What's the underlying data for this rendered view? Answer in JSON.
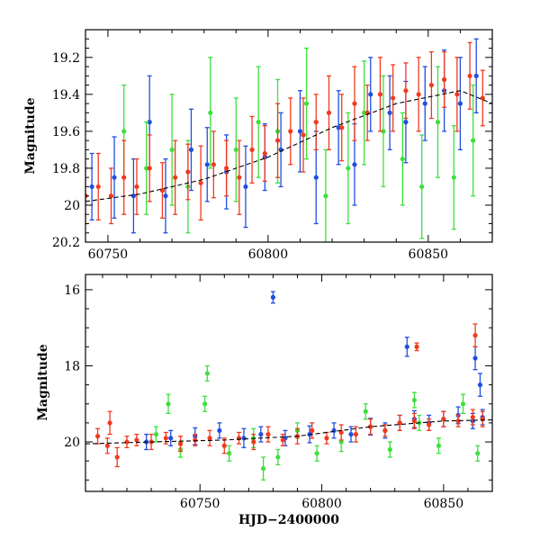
{
  "colors": {
    "blue": "#1f4fe0",
    "green": "#3de03d",
    "red": "#f03a1e",
    "model": "#000000"
  },
  "chart_data": [
    {
      "type": "scatter",
      "title": "",
      "xlabel": "",
      "ylabel": "Magnitude",
      "xlim": [
        60743,
        60870
      ],
      "ylim": [
        20.2,
        19.05
      ],
      "y_inverted": true,
      "x_ticks": [
        60750,
        60800,
        60850
      ],
      "x_tick_labels": [
        "60750",
        "60800",
        "60850"
      ],
      "y_ticks": [
        19.2,
        19.4,
        19.6,
        19.8,
        20,
        20.2
      ],
      "y_tick_labels": [
        "19.2",
        "19.4",
        "19.6",
        "19.8",
        "20",
        "20.2"
      ],
      "grid": false,
      "model_curve": {
        "style": "dashed",
        "x": [
          60743,
          60760,
          60780,
          60800,
          60820,
          60840,
          60860,
          60870
        ],
        "y": [
          19.98,
          19.94,
          19.86,
          19.74,
          19.58,
          19.45,
          19.38,
          19.45
        ]
      },
      "series": [
        {
          "color": "blue",
          "x": [
            60745,
            60752,
            60758,
            60763,
            60768,
            60776,
            60781,
            60787,
            60793,
            60799,
            60804,
            60810,
            60815,
            60822,
            60827,
            60832,
            60838,
            60843,
            60849,
            60855,
            60860,
            60865
          ],
          "y": [
            19.9,
            19.85,
            19.95,
            19.55,
            19.95,
            19.7,
            19.78,
            19.82,
            19.9,
            19.74,
            19.7,
            19.6,
            19.85,
            19.58,
            19.78,
            19.4,
            19.5,
            19.55,
            19.45,
            19.38,
            19.45,
            19.3
          ],
          "err": [
            0.18,
            0.22,
            0.2,
            0.25,
            0.2,
            0.22,
            0.2,
            0.2,
            0.22,
            0.18,
            0.2,
            0.22,
            0.25,
            0.2,
            0.22,
            0.2,
            0.2,
            0.22,
            0.2,
            0.22,
            0.25,
            0.2
          ]
        },
        {
          "color": "green",
          "x": [
            60755,
            60762,
            60770,
            60775,
            60782,
            60790,
            60797,
            60803,
            60812,
            60818,
            60825,
            60830,
            60836,
            60842,
            60848,
            60853,
            60858,
            60864
          ],
          "y": [
            19.6,
            19.8,
            19.7,
            19.9,
            19.5,
            19.7,
            19.55,
            19.6,
            19.45,
            19.95,
            19.8,
            19.5,
            19.6,
            19.75,
            19.9,
            19.55,
            19.85,
            19.65
          ],
          "err": [
            0.25,
            0.25,
            0.3,
            0.25,
            0.3,
            0.28,
            0.3,
            0.28,
            0.3,
            0.25,
            0.3,
            0.28,
            0.3,
            0.25,
            0.28,
            0.3,
            0.28,
            0.3
          ]
        },
        {
          "color": "red",
          "x": [
            60743,
            60747,
            60751,
            60755,
            60759,
            60763,
            60767,
            60771,
            60775,
            60779,
            60783,
            60787,
            60791,
            60795,
            60799,
            60803,
            60807,
            60811,
            60815,
            60819,
            60823,
            60827,
            60831,
            60835,
            60839,
            60843,
            60847,
            60851,
            60855,
            60859,
            60863,
            60867
          ],
          "y": [
            19.95,
            19.9,
            19.95,
            19.85,
            19.9,
            19.8,
            19.92,
            19.85,
            19.82,
            19.88,
            19.78,
            19.8,
            19.85,
            19.7,
            19.72,
            19.65,
            19.6,
            19.62,
            19.55,
            19.5,
            19.58,
            19.45,
            19.5,
            19.4,
            19.42,
            19.38,
            19.4,
            19.35,
            19.32,
            19.4,
            19.3,
            19.42
          ],
          "err": [
            0.15,
            0.18,
            0.15,
            0.2,
            0.15,
            0.18,
            0.15,
            0.2,
            0.15,
            0.2,
            0.18,
            0.15,
            0.2,
            0.18,
            0.15,
            0.2,
            0.18,
            0.2,
            0.15,
            0.2,
            0.18,
            0.2,
            0.15,
            0.2,
            0.18,
            0.15,
            0.2,
            0.18,
            0.15,
            0.2,
            0.18,
            0.15
          ]
        }
      ]
    },
    {
      "type": "scatter",
      "title": "",
      "xlabel": "HJD−2400000",
      "ylabel": "Magnitude",
      "xlim": [
        60703,
        60870
      ],
      "ylim": [
        21.3,
        15.6
      ],
      "y_inverted": true,
      "x_ticks": [
        60750,
        60800,
        60850
      ],
      "x_tick_labels": [
        "60750",
        "60800",
        "60850"
      ],
      "y_ticks": [
        16,
        18,
        20
      ],
      "y_tick_labels": [
        "16",
        "18",
        "20"
      ],
      "grid": false,
      "model_curve": {
        "style": "dashed",
        "x": [
          60703,
          60730,
          60760,
          60790,
          60820,
          60850,
          60870
        ],
        "y": [
          20.05,
          20.0,
          19.95,
          19.85,
          19.6,
          19.45,
          19.42
        ]
      },
      "series": [
        {
          "color": "blue",
          "x": [
            60780,
            60728,
            60738,
            60748,
            60758,
            60768,
            60775,
            60785,
            60795,
            60805,
            60812,
            60820,
            60826,
            60832,
            60838,
            60844,
            60850,
            60856,
            60862,
            60866,
            60835,
            60863,
            60865
          ],
          "y": [
            16.2,
            20.0,
            19.9,
            19.85,
            19.7,
            19.9,
            19.8,
            19.9,
            19.8,
            19.7,
            19.8,
            19.6,
            19.7,
            19.5,
            19.4,
            19.5,
            19.4,
            19.3,
            19.45,
            19.35,
            17.5,
            17.8,
            18.5
          ],
          "err": [
            0.15,
            0.2,
            0.2,
            0.22,
            0.2,
            0.25,
            0.2,
            0.2,
            0.22,
            0.2,
            0.2,
            0.22,
            0.2,
            0.2,
            0.22,
            0.2,
            0.2,
            0.22,
            0.2,
            0.2,
            0.25,
            0.3,
            0.3
          ]
        },
        {
          "color": "green",
          "x": [
            60732,
            60742,
            60752,
            60762,
            60772,
            60782,
            60790,
            60798,
            60808,
            60818,
            60828,
            60838,
            60848,
            60858,
            60864,
            60737,
            60753,
            60776,
            60840
          ],
          "y": [
            19.8,
            20.2,
            19.0,
            20.3,
            19.9,
            20.4,
            19.7,
            20.3,
            20.0,
            19.2,
            20.2,
            18.9,
            20.1,
            19.0,
            20.3,
            19.0,
            18.2,
            20.7,
            19.5
          ],
          "err": [
            0.2,
            0.2,
            0.2,
            0.2,
            0.25,
            0.2,
            0.2,
            0.2,
            0.25,
            0.2,
            0.2,
            0.2,
            0.2,
            0.25,
            0.2,
            0.25,
            0.2,
            0.3,
            0.2
          ]
        },
        {
          "color": "red",
          "x": [
            60708,
            60712,
            60716,
            60720,
            60724,
            60730,
            60736,
            60742,
            60748,
            60754,
            60760,
            60766,
            60772,
            60778,
            60784,
            60790,
            60796,
            60802,
            60808,
            60814,
            60820,
            60826,
            60832,
            60838,
            60844,
            60850,
            60856,
            60862,
            60866,
            60863,
            60839,
            60713
          ],
          "y": [
            19.85,
            20.1,
            20.4,
            20.0,
            19.95,
            20.0,
            19.9,
            20.05,
            19.95,
            19.9,
            20.1,
            19.9,
            20.0,
            19.8,
            19.95,
            19.85,
            19.7,
            19.9,
            19.75,
            19.8,
            19.6,
            19.7,
            19.5,
            19.45,
            19.55,
            19.4,
            19.45,
            19.35,
            19.4,
            17.2,
            17.5,
            19.5
          ],
          "err": [
            0.2,
            0.2,
            0.25,
            0.15,
            0.15,
            0.2,
            0.15,
            0.2,
            0.15,
            0.2,
            0.2,
            0.15,
            0.2,
            0.2,
            0.15,
            0.2,
            0.2,
            0.15,
            0.2,
            0.2,
            0.2,
            0.15,
            0.2,
            0.2,
            0.15,
            0.2,
            0.15,
            0.2,
            0.2,
            0.3,
            0.1,
            0.3
          ]
        }
      ]
    }
  ]
}
